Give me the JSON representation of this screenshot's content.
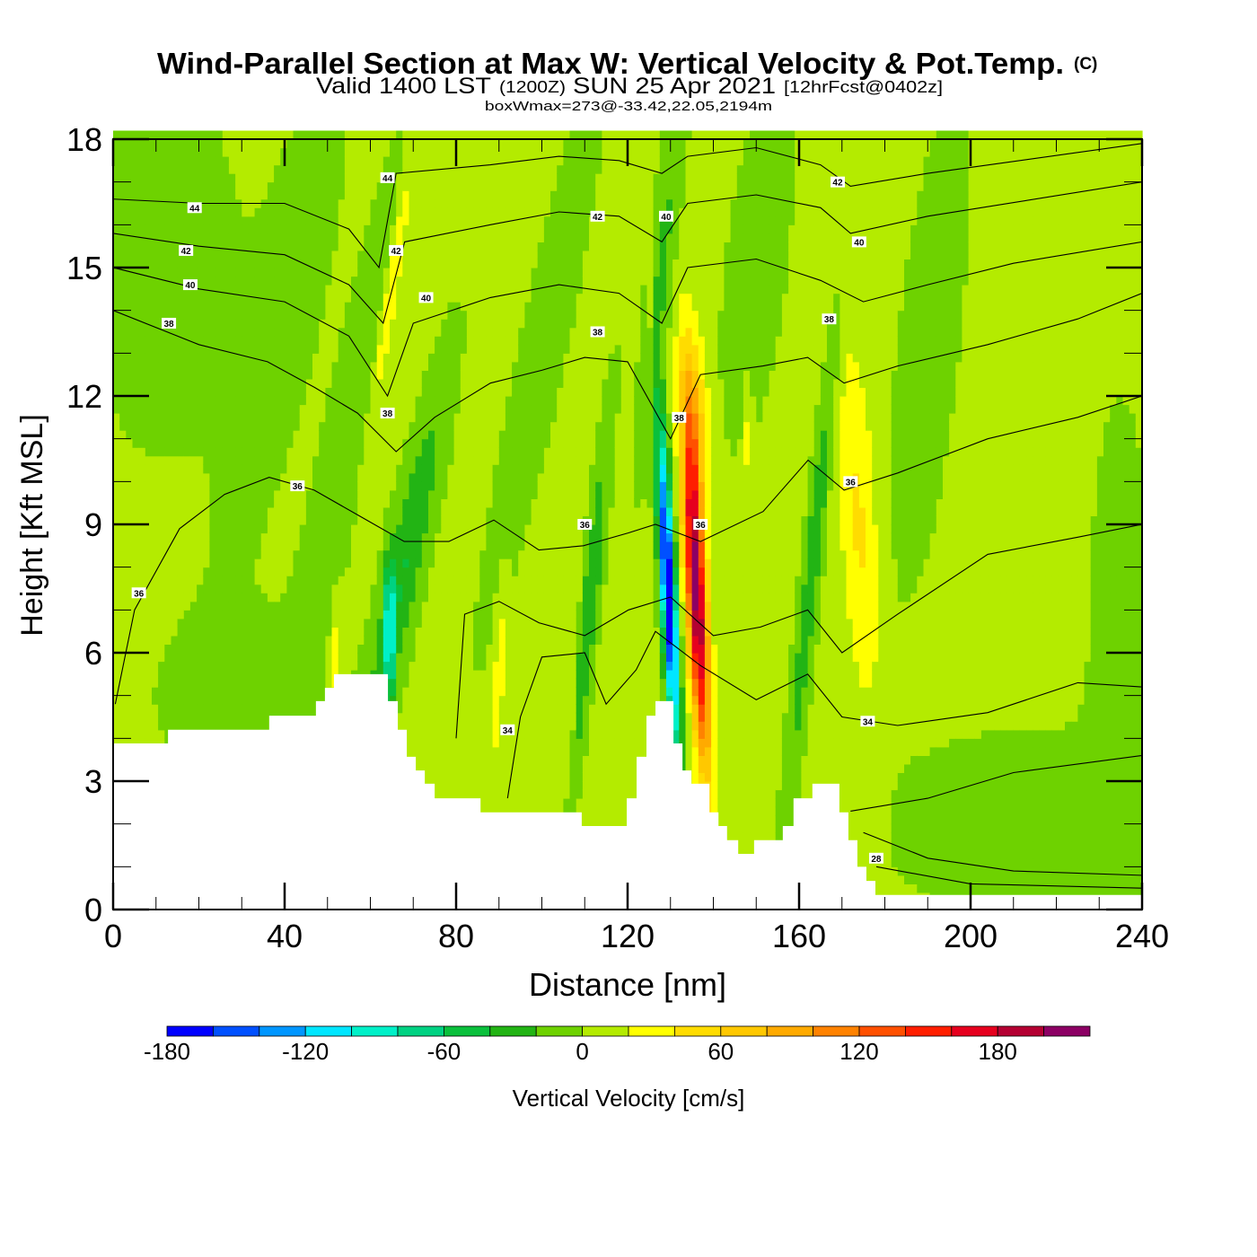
{
  "chart_data": {
    "type": "heatmap",
    "title": "Wind-Parallel Section at Max W: Vertical Velocity & Pot.Temp.",
    "title_mark": "(C)",
    "subtitle_main": "Valid 1400 LST",
    "subtitle_utc": "(1200Z)",
    "subtitle_date": "SUN 25 Apr 2021",
    "subtitle_fcst": "[12hrFcst@0402z]",
    "subtitle2": "boxWmax=273@-33.42,22.05,2194m",
    "xlabel": "Distance [nm]",
    "ylabel": "Height [Kft MSL]",
    "xlim": [
      0,
      242
    ],
    "ylim": [
      0,
      18
    ],
    "xticks": [
      "0",
      "40",
      "80",
      "120",
      "160",
      "200",
      "240"
    ],
    "yticks": [
      "0",
      "3",
      "6",
      "9",
      "12",
      "15",
      "18"
    ],
    "colorbar": {
      "label": "Vertical Velocity [cm/s]",
      "min": -180,
      "step": 20,
      "tick_labels": [
        "-180",
        "-120",
        "-60",
        "0",
        "60",
        "120",
        "180"
      ],
      "colors": [
        "#0000ff",
        "#0050ff",
        "#0096ff",
        "#00e6ff",
        "#00f0c8",
        "#00d282",
        "#0ac03c",
        "#22b414",
        "#6ed200",
        "#b4eb00",
        "#ffff00",
        "#ffdc00",
        "#ffc800",
        "#ffaa00",
        "#ff8200",
        "#ff5000",
        "#ff1e00",
        "#e6001e",
        "#b40032",
        "#8c0064"
      ]
    },
    "velocity_base": 5,
    "velocity_features": [
      {
        "x": 12,
        "z": 15,
        "a": -15,
        "sx": 12,
        "sz": 3,
        "t": 0
      },
      {
        "x": 40,
        "z": 14,
        "a": -15,
        "sx": 6,
        "sz": 4,
        "t": 2
      },
      {
        "x": 55,
        "z": 11,
        "a": -20,
        "sx": 4,
        "sz": 5,
        "t": 2
      },
      {
        "x": 68,
        "z": 8,
        "a": -45,
        "sx": 3,
        "sz": 3,
        "t": 2
      },
      {
        "x": 64.5,
        "z": 6.5,
        "a": -90,
        "sx": 0.8,
        "sz": 1.2,
        "t": 0
      },
      {
        "x": 65,
        "z": 14.5,
        "a": 40,
        "sx": 1.2,
        "sz": 2.5,
        "t": 1.5
      },
      {
        "x": 52,
        "z": 6,
        "a": 28,
        "sx": 1,
        "sz": 1,
        "t": 0
      },
      {
        "x": 90,
        "z": 5.5,
        "a": 28,
        "sx": 1,
        "sz": 1.5,
        "t": 0.5
      },
      {
        "x": 107,
        "z": 5,
        "a": 28,
        "sx": 0.8,
        "sz": 1.5,
        "t": 0.5
      },
      {
        "x": 111,
        "z": 7,
        "a": -45,
        "sx": 1.5,
        "sz": 3,
        "t": 1
      },
      {
        "x": 100,
        "z": 13,
        "a": -15,
        "sx": 4,
        "sz": 5,
        "t": 2
      },
      {
        "x": 125.5,
        "z": 14.5,
        "a": 30,
        "sx": 0.6,
        "sz": 1.5,
        "t": 0
      },
      {
        "x": 128,
        "z": 15,
        "a": -30,
        "sx": 2,
        "sz": 3,
        "t": 1
      },
      {
        "x": 129.5,
        "z": 7.5,
        "a": -200,
        "sx": 1.2,
        "sz": 2.5,
        "t": -0.5
      },
      {
        "x": 136,
        "z": 7.5,
        "a": 210,
        "sx": 1.6,
        "sz": 2.8,
        "t": -0.5
      },
      {
        "x": 136,
        "z": 11.5,
        "a": 60,
        "sx": 2,
        "sz": 1.5,
        "t": -0.5
      },
      {
        "x": 148,
        "z": 11,
        "a": 25,
        "sx": 0.7,
        "sz": 1,
        "t": 0
      },
      {
        "x": 150,
        "z": 15,
        "a": -15,
        "sx": 5,
        "sz": 3,
        "t": 1
      },
      {
        "x": 163,
        "z": 8,
        "a": -40,
        "sx": 1.5,
        "sz": 4,
        "t": 1
      },
      {
        "x": 174,
        "z": 9,
        "a": 38,
        "sx": 3,
        "sz": 3,
        "t": -0.5
      },
      {
        "x": 190,
        "z": 13,
        "a": -15,
        "sx": 5,
        "sz": 4,
        "t": 1
      },
      {
        "x": 215,
        "z": 2,
        "a": -15,
        "sx": 25,
        "sz": 1.5,
        "t": 0
      },
      {
        "x": 235,
        "z": 6,
        "a": -15,
        "sx": 5,
        "sz": 4,
        "t": 0
      },
      {
        "x": 30,
        "z": 5,
        "a": -12,
        "sx": 15,
        "sz": 1.5,
        "t": 0
      }
    ],
    "terrain_steps": [
      [
        0,
        12.8,
        3.88
      ],
      [
        12.8,
        36.4,
        4.2
      ],
      [
        36.4,
        47.3,
        4.53
      ],
      [
        47.3,
        49.4,
        4.87
      ],
      [
        49.4,
        51.5,
        5.18
      ],
      [
        51.5,
        64.1,
        5.5
      ],
      [
        64.1,
        66.4,
        4.87
      ],
      [
        66.4,
        68.5,
        4.2
      ],
      [
        68.5,
        70.6,
        3.57
      ],
      [
        70.6,
        72.7,
        3.25
      ],
      [
        72.7,
        75,
        2.94
      ],
      [
        75,
        85.7,
        2.6
      ],
      [
        85.7,
        109.3,
        2.27
      ],
      [
        109.3,
        119.8,
        1.95
      ],
      [
        119.8,
        122.1,
        2.6
      ],
      [
        122.1,
        124.4,
        3.57
      ],
      [
        124.4,
        126.5,
        4.53
      ],
      [
        126.5,
        130.7,
        4.87
      ],
      [
        130.7,
        132.8,
        3.88
      ],
      [
        132.8,
        134.9,
        3.25
      ],
      [
        134.9,
        139.1,
        2.94
      ],
      [
        139.1,
        141.2,
        2.27
      ],
      [
        141.2,
        143.2,
        1.95
      ],
      [
        143.2,
        145.8,
        1.62
      ],
      [
        145.8,
        149.5,
        1.3
      ],
      [
        149.5,
        156.2,
        1.62
      ],
      [
        156.2,
        158.7,
        1.95
      ],
      [
        158.7,
        163.1,
        2.6
      ],
      [
        163.1,
        169.4,
        2.94
      ],
      [
        169.4,
        171.5,
        2.27
      ],
      [
        171.5,
        173.6,
        1.62
      ],
      [
        173.6,
        175.7,
        1.0
      ],
      [
        175.7,
        177.8,
        0.67
      ],
      [
        177.8,
        240,
        0.34
      ]
    ],
    "isentropes": [
      {
        "theta": 44,
        "points": [
          [
            0,
            16.6
          ],
          [
            20,
            16.5
          ],
          [
            40,
            16.5
          ],
          [
            55,
            15.9
          ],
          [
            62,
            15.0
          ],
          [
            66,
            17.2
          ],
          [
            88,
            17.4
          ],
          [
            104,
            17.6
          ],
          [
            118,
            17.5
          ],
          [
            128,
            17.2
          ],
          [
            134,
            17.6
          ],
          [
            150,
            17.8
          ],
          [
            165,
            17.4
          ],
          [
            172,
            16.9
          ],
          [
            190,
            17.2
          ],
          [
            240,
            17.9
          ]
        ]
      },
      {
        "theta": 42,
        "points": [
          [
            0,
            15.8
          ],
          [
            20,
            15.5
          ],
          [
            40,
            15.3
          ],
          [
            55,
            14.6
          ],
          [
            63,
            13.7
          ],
          [
            68,
            15.6
          ],
          [
            88,
            16.0
          ],
          [
            104,
            16.3
          ],
          [
            118,
            16.2
          ],
          [
            128,
            15.6
          ],
          [
            134,
            16.5
          ],
          [
            150,
            16.7
          ],
          [
            165,
            16.4
          ],
          [
            172,
            15.8
          ],
          [
            190,
            16.2
          ],
          [
            240,
            17.0
          ]
        ]
      },
      {
        "theta": 40,
        "points": [
          [
            0,
            15.0
          ],
          [
            20,
            14.5
          ],
          [
            40,
            14.2
          ],
          [
            55,
            13.4
          ],
          [
            64,
            12.0
          ],
          [
            70,
            13.7
          ],
          [
            88,
            14.3
          ],
          [
            104,
            14.6
          ],
          [
            118,
            14.4
          ],
          [
            128,
            13.7
          ],
          [
            134,
            15.0
          ],
          [
            150,
            15.2
          ],
          [
            165,
            14.7
          ],
          [
            175,
            14.2
          ],
          [
            190,
            14.6
          ],
          [
            210,
            15.1
          ],
          [
            240,
            15.6
          ]
        ]
      },
      {
        "theta": 38,
        "points": [
          [
            0,
            14.0
          ],
          [
            20,
            13.2
          ],
          [
            36,
            12.8
          ],
          [
            47,
            12.2
          ],
          [
            57,
            11.6
          ],
          [
            66,
            10.7
          ],
          [
            75,
            11.5
          ],
          [
            88,
            12.3
          ],
          [
            100,
            12.6
          ],
          [
            110,
            12.9
          ],
          [
            120,
            12.8
          ],
          [
            130,
            11
          ],
          [
            137,
            12.5
          ],
          [
            151.6,
            12.7
          ],
          [
            162,
            12.9
          ],
          [
            170.5,
            12.3
          ],
          [
            183,
            12.7
          ],
          [
            204,
            13.2
          ],
          [
            225,
            13.8
          ],
          [
            240,
            14.4
          ]
        ]
      },
      {
        "theta": 36,
        "points": [
          [
            0.5,
            4.8
          ],
          [
            5,
            7
          ],
          [
            15.5,
            8.9
          ],
          [
            26,
            9.7
          ],
          [
            36.4,
            10.1
          ],
          [
            46.9,
            9.8
          ],
          [
            57.4,
            9.2
          ],
          [
            67.9,
            8.6
          ],
          [
            78.3,
            8.6
          ],
          [
            88.8,
            9.1
          ],
          [
            99.3,
            8.4
          ],
          [
            109.7,
            8.5
          ],
          [
            120.2,
            8.8
          ],
          [
            126.5,
            9.0
          ],
          [
            137,
            8.6
          ],
          [
            151.6,
            9.3
          ],
          [
            162.1,
            10.5
          ],
          [
            170.5,
            9.8
          ],
          [
            183,
            10.2
          ],
          [
            204,
            11.0
          ],
          [
            225,
            11.5
          ],
          [
            240,
            12.0
          ]
        ]
      },
      {
        "theta": 35,
        "points": [
          [
            80,
            4
          ],
          [
            82,
            6.9
          ],
          [
            90,
            7.2
          ],
          [
            99.3,
            6.7
          ],
          [
            110,
            6.4
          ],
          [
            120.2,
            7.0
          ],
          [
            130,
            7.3
          ],
          [
            140,
            6.4
          ],
          [
            151,
            6.6
          ],
          [
            162,
            7.0
          ],
          [
            170,
            6.0
          ],
          [
            183,
            6.9
          ],
          [
            204,
            8.3
          ],
          [
            225,
            8.7
          ],
          [
            240,
            9.0
          ]
        ]
      },
      {
        "theta": 34,
        "points": [
          [
            92,
            2.6
          ],
          [
            95,
            4.5
          ],
          [
            100,
            5.9
          ],
          [
            110,
            6.0
          ],
          [
            115,
            4.8
          ],
          [
            122,
            5.6
          ],
          [
            126.5,
            6.5
          ],
          [
            137,
            5.7
          ],
          [
            150,
            4.9
          ],
          [
            162,
            5.5
          ],
          [
            170,
            4.5
          ],
          [
            183,
            4.3
          ],
          [
            204,
            4.6
          ],
          [
            225,
            5.3
          ],
          [
            240,
            5.2
          ]
        ]
      },
      {
        "theta": 32,
        "points": [
          [
            172,
            2.3
          ],
          [
            190,
            2.6
          ],
          [
            210,
            3.2
          ],
          [
            240,
            3.6
          ]
        ]
      },
      {
        "theta": 30,
        "points": [
          [
            175,
            1.8
          ],
          [
            190,
            1.2
          ],
          [
            210,
            0.9
          ],
          [
            240,
            0.8
          ]
        ]
      },
      {
        "theta": 28,
        "points": [
          [
            178,
            1.0
          ],
          [
            200,
            0.6
          ],
          [
            240,
            0.5
          ]
        ]
      }
    ],
    "contour_labels": [
      {
        "text": "44",
        "x": 19,
        "z": 16.4
      },
      {
        "text": "42",
        "x": 17,
        "z": 15.4
      },
      {
        "text": "40",
        "x": 18,
        "z": 14.6
      },
      {
        "text": "38",
        "x": 13,
        "z": 13.7
      },
      {
        "text": "44",
        "x": 64,
        "z": 17.1
      },
      {
        "text": "42",
        "x": 66,
        "z": 15.4
      },
      {
        "text": "40",
        "x": 73,
        "z": 14.3
      },
      {
        "text": "38",
        "x": 64,
        "z": 11.6
      },
      {
        "text": "36",
        "x": 43,
        "z": 9.9
      },
      {
        "text": "36",
        "x": 6,
        "z": 7.4
      },
      {
        "text": "42",
        "x": 113,
        "z": 16.2
      },
      {
        "text": "40",
        "x": 129,
        "z": 16.2
      },
      {
        "text": "38",
        "x": 113,
        "z": 13.5
      },
      {
        "text": "38",
        "x": 132,
        "z": 11.5
      },
      {
        "text": "36",
        "x": 110,
        "z": 9.0
      },
      {
        "text": "36",
        "x": 137,
        "z": 9.0
      },
      {
        "text": "34",
        "x": 92,
        "z": 4.2
      },
      {
        "text": "42",
        "x": 169,
        "z": 17.0
      },
      {
        "text": "40",
        "x": 174,
        "z": 15.6
      },
      {
        "text": "38",
        "x": 167,
        "z": 13.8
      },
      {
        "text": "36",
        "x": 172,
        "z": 10.0
      },
      {
        "text": "34",
        "x": 176,
        "z": 4.4
      },
      {
        "text": "28",
        "x": 178,
        "z": 1.2
      }
    ]
  }
}
